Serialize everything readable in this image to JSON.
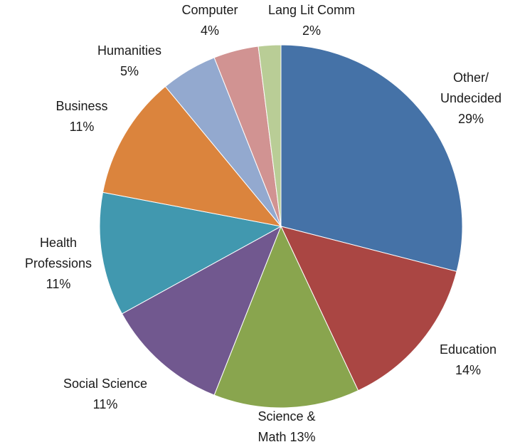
{
  "chart_data": {
    "type": "pie",
    "title": "",
    "start_angle_deg": 0,
    "direction": "clockwise",
    "slices": [
      {
        "label_lines": [
          "Other/",
          "Undecided",
          "29%"
        ],
        "value": 29,
        "color": "#4572a7"
      },
      {
        "label_lines": [
          "Education",
          "14%"
        ],
        "value": 14,
        "color": "#aa4643"
      },
      {
        "label_lines": [
          "Science &",
          "Math 13%"
        ],
        "value": 13,
        "color": "#89a54e"
      },
      {
        "label_lines": [
          "Social Science",
          "11%"
        ],
        "value": 11,
        "color": "#71588f"
      },
      {
        "label_lines": [
          "Health",
          "Professions",
          "11%"
        ],
        "value": 11,
        "color": "#4198af"
      },
      {
        "label_lines": [
          "Business",
          "11%"
        ],
        "value": 11,
        "color": "#db843d"
      },
      {
        "label_lines": [
          "Humanities",
          "5%"
        ],
        "value": 5,
        "color": "#93a9cf"
      },
      {
        "label_lines": [
          "Computer",
          "4%"
        ],
        "value": 4,
        "color": "#d19392"
      },
      {
        "label_lines": [
          "Lang Lit Comm",
          "2%"
        ],
        "value": 2,
        "color": "#b9cd96"
      }
    ]
  }
}
